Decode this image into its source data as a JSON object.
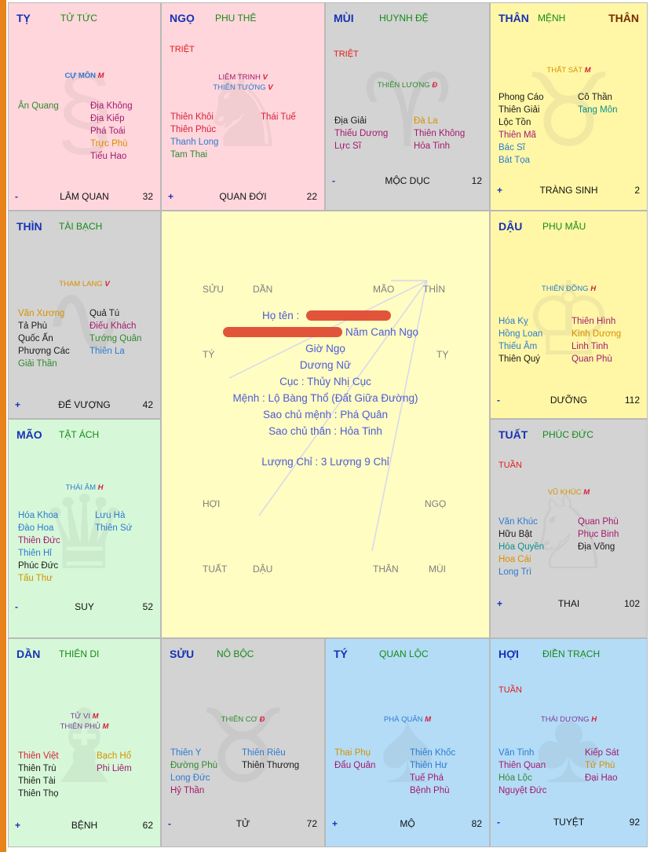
{
  "palaces": [
    {
      "id": "ty",
      "name": "TỴ",
      "palace": "TỬ TỨC",
      "than": "",
      "tag": "",
      "main": [],
      "extra": {
        "label": "CỰ MÔN",
        "grade": "M"
      },
      "left": [
        "Ân Quang"
      ],
      "right": [
        "Địa Không",
        "Địa Kiếp",
        "Phá Toái",
        "Trực Phù",
        "Tiểu Hao"
      ],
      "sign": "-",
      "stage": "LÂM QUAN",
      "age": "32"
    },
    {
      "id": "ngo",
      "name": "NGỌ",
      "palace": "PHU THÊ",
      "than": "",
      "tag": "TRIỆT",
      "main": [
        {
          "label": "LIÊM TRINH",
          "grade": "V"
        },
        {
          "label": "THIÊN TƯỚNG",
          "grade": "V"
        }
      ],
      "left": [
        "Thiên Khôi",
        "Thiên Phúc",
        "Thanh Long",
        "Tam Thai"
      ],
      "right": [
        "Thái Tuế"
      ],
      "sign": "+",
      "stage": "QUAN ĐỚI",
      "age": "22"
    },
    {
      "id": "mui",
      "name": "MÙI",
      "palace": "HUYNH ĐỆ",
      "than": "",
      "tag": "TRIỆT",
      "main": [
        {
          "label": "THIÊN LƯƠNG",
          "grade": "Đ"
        }
      ],
      "left": [
        "Địa Giải",
        "Thiếu Dương",
        "Lực Sĩ"
      ],
      "right": [
        "Đà La",
        "Thiên Không",
        "Hỏa Tinh"
      ],
      "sign": "-",
      "stage": "MỘC DỤC",
      "age": "12"
    },
    {
      "id": "than1",
      "name": "THÂN",
      "palace": "MỆNH",
      "than": "THÂN",
      "tag": "",
      "main": [
        {
          "label": "THẤT SÁT",
          "grade": "M"
        }
      ],
      "left": [
        "Phong Cáo",
        "Thiên Giải",
        "Lộc Tồn",
        "Thiên Mã",
        "Bác Sĩ",
        "Bát Tọa"
      ],
      "right": [
        "Cô Thần",
        "Tang Môn"
      ],
      "sign": "+",
      "stage": "TRÀNG SINH",
      "age": "2"
    },
    {
      "id": "thin",
      "name": "THÌN",
      "palace": "TÀI BẠCH",
      "than": "",
      "tag": "",
      "main": [
        {
          "label": "THAM LANG",
          "grade": "V"
        }
      ],
      "left": [
        "Văn Xương",
        "Tả Phù",
        "Quốc Ấn",
        "Phượng Các",
        "Giải Thần"
      ],
      "right": [
        "Quả Tú",
        "Điếu Khách",
        "Tướng Quân",
        "Thiên La"
      ],
      "sign": "+",
      "stage": "ĐẾ VƯỢNG",
      "age": "42"
    },
    {
      "id": "dau",
      "name": "DẬU",
      "palace": "PHỤ MẪU",
      "than": "",
      "tag": "",
      "main": [
        {
          "label": "THIÊN ĐỒNG",
          "grade": "H"
        }
      ],
      "left": [
        "Hóa Kỵ",
        "Hồng Loan",
        "Thiếu Âm",
        "Thiên Quý"
      ],
      "right": [
        "Thiên Hình",
        "Kình Dương",
        "Linh Tinh",
        "Quan Phù"
      ],
      "sign": "-",
      "stage": "DƯỠNG",
      "age": "112"
    },
    {
      "id": "mao",
      "name": "MÃO",
      "palace": "TẬT ÁCH",
      "than": "",
      "tag": "",
      "main": [
        {
          "label": "THÁI ÂM",
          "grade": "H"
        }
      ],
      "left": [
        "Hóa Khoa",
        "Đào Hoa",
        "Thiên Đức",
        "Thiên Hỉ",
        "Phúc Đức",
        "Tấu Thư"
      ],
      "right": [
        "Lưu Hà",
        "Thiên Sứ"
      ],
      "sign": "-",
      "stage": "SUY",
      "age": "52"
    },
    {
      "id": "tuat",
      "name": "TUẤT",
      "palace": "PHÚC ĐỨC",
      "than": "",
      "tag": "TUẦN",
      "main": [
        {
          "label": "VŨ KHÚC",
          "grade": "M"
        }
      ],
      "left": [
        "Văn Khúc",
        "Hữu Bật",
        "Hóa Quyền",
        "Hoa Cái",
        "Long Trì"
      ],
      "right": [
        "Quan Phù",
        "Phục Binh",
        "Địa Võng"
      ],
      "sign": "+",
      "stage": "THAI",
      "age": "102"
    },
    {
      "id": "dan",
      "name": "DẦN",
      "palace": "THIÊN DI",
      "than": "",
      "tag": "",
      "main": [
        {
          "label": "TỬ VI",
          "grade": "M"
        },
        {
          "label": "THIÊN PHỦ",
          "grade": "M"
        }
      ],
      "left": [
        "Thiên Việt",
        "Thiên Trù",
        "Thiên Tài",
        "Thiên Thọ"
      ],
      "right": [
        "Bạch Hổ",
        "Phi Liêm"
      ],
      "sign": "+",
      "stage": "BỆNH",
      "age": "62"
    },
    {
      "id": "suu",
      "name": "SỬU",
      "palace": "NÔ BỘC",
      "than": "",
      "tag": "",
      "main": [
        {
          "label": "THIÊN CƠ",
          "grade": "Đ"
        }
      ],
      "left": [
        "Thiên Y",
        "Đường Phù",
        "Long Đức",
        "Hỷ Thần"
      ],
      "right": [
        "Thiên Riêu",
        "Thiên Thương"
      ],
      "sign": "-",
      "stage": "TỬ",
      "age": "72"
    },
    {
      "id": "tys",
      "name": "TÝ",
      "palace": "QUAN LỘC",
      "than": "",
      "tag": "",
      "main": [
        {
          "label": "PHÁ QUÂN",
          "grade": "M"
        }
      ],
      "left": [
        "Thai Phụ",
        "Đẩu Quân"
      ],
      "right": [
        "Thiên Khốc",
        "Thiên Hư",
        "Tuế Phá",
        "Bệnh Phù"
      ],
      "sign": "+",
      "stage": "MỘ",
      "age": "82"
    },
    {
      "id": "hoi",
      "name": "HỢI",
      "palace": "ĐIỀN TRẠCH",
      "than": "",
      "tag": "TUẦN",
      "main": [
        {
          "label": "THÁI DƯƠNG",
          "grade": "H"
        }
      ],
      "left": [
        "Văn Tinh",
        "Thiên Quan",
        "Hóa Lộc",
        "Nguyệt Đức"
      ],
      "right": [
        "Kiếp Sát",
        "Tử Phù",
        "Đại Hao"
      ],
      "sign": "-",
      "stage": "TUYỆT",
      "age": "92"
    }
  ],
  "center": {
    "top_labels": [
      "SỬU",
      "DẦN",
      "MÃO",
      "THÌN"
    ],
    "side_labels": [
      "TÝ",
      "TỴ",
      "HỢI",
      "NGỌ"
    ],
    "bottom_labels": [
      "TUẤT",
      "DẬU",
      "THÂN",
      "MÙI"
    ],
    "name_label": "Họ tên :",
    "birth": "Năm Canh Ngọ",
    "hour": "Giờ Ngọ",
    "gender": "Dương Nữ",
    "cuc": "Cục : Thủy Nhị Cục",
    "menh": "Mệnh : Lộ Bàng Thổ (Đất Giữa Đường)",
    "chu_menh": "Sao chủ mệnh : Phá Quân",
    "chu_than": "Sao chủ thân : Hỏa Tinh",
    "luong": "Lượng Chỉ : 3 Lượng 9 Chỉ"
  }
}
